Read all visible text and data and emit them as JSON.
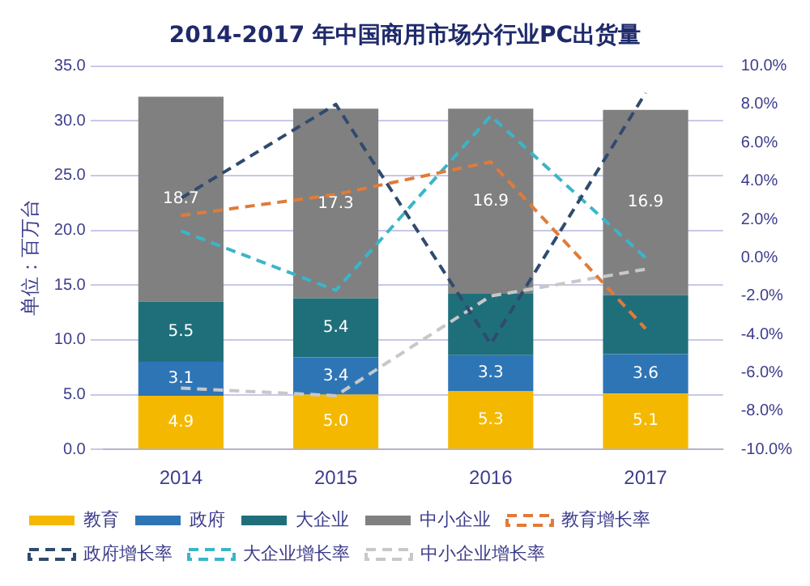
{
  "chart_data": {
    "type": "bar",
    "title": "2014-2017 年中国商用市场分行业PC出货量",
    "ylabel": "单位：百万台",
    "categories": [
      "2014",
      "2015",
      "2016",
      "2017"
    ],
    "stacked": true,
    "grid": "y",
    "legend": "bottom",
    "ylim": [
      0,
      35
    ],
    "yticks": [
      {
        "value": 0,
        "label": "0.0"
      },
      {
        "value": 5,
        "label": "5.0"
      },
      {
        "value": 10,
        "label": "10.0"
      },
      {
        "value": 15,
        "label": "15.0"
      },
      {
        "value": 20,
        "label": "20.0"
      },
      {
        "value": 25,
        "label": "25.0"
      },
      {
        "value": 30,
        "label": "30.0"
      },
      {
        "value": 35,
        "label": "35.0"
      }
    ],
    "y2lim": [
      -10,
      10
    ],
    "y2ticks": [
      {
        "value": -10,
        "label": "-10.0%"
      },
      {
        "value": -8,
        "label": "-8.0%"
      },
      {
        "value": -6,
        "label": "-6.0%"
      },
      {
        "value": -4,
        "label": "-4.0%"
      },
      {
        "value": -2,
        "label": "-2.0%"
      },
      {
        "value": 0,
        "label": "0.0%"
      },
      {
        "value": 2,
        "label": "2.0%"
      },
      {
        "value": 4,
        "label": "4.0%"
      },
      {
        "value": 6,
        "label": "6.0%"
      },
      {
        "value": 8,
        "label": "8.0%"
      },
      {
        "value": 10,
        "label": "10.0%"
      }
    ],
    "series": [
      {
        "name": "教育",
        "color": "#f5b800",
        "values": [
          4.9,
          5.0,
          5.3,
          5.1
        ],
        "value_labels": [
          "4.9",
          "5.0",
          "5.3",
          "5.1"
        ]
      },
      {
        "name": "政府",
        "color": "#2e75b6",
        "values": [
          3.1,
          3.4,
          3.3,
          3.6
        ],
        "value_labels": [
          "3.1",
          "3.4",
          "3.3",
          "3.6"
        ]
      },
      {
        "name": "大企业",
        "color": "#1f6f7a",
        "values": [
          5.5,
          5.4,
          5.6,
          5.4
        ],
        "value_labels": [
          "5.5",
          "5.4",
          null,
          null
        ]
      },
      {
        "name": "中小企业",
        "color": "#808080",
        "values": [
          18.7,
          17.3,
          16.9,
          16.9
        ],
        "value_labels": [
          "18.7",
          "17.3",
          "16.9",
          "16.9"
        ]
      },
      {
        "name": "教育增长率",
        "type": "line",
        "axis": "y2",
        "line_style": "dashed",
        "marker": "none",
        "color": "#e07b39",
        "values": [
          2.2,
          3.3,
          5.0,
          -3.7
        ]
      },
      {
        "name": "政府增长率",
        "type": "line",
        "axis": "y2",
        "line_style": "dashed",
        "marker": "none",
        "color": "#2f4b6e",
        "values": [
          3.1,
          8.0,
          -4.5,
          8.6
        ]
      },
      {
        "name": "大企业增长率",
        "type": "line",
        "axis": "y2",
        "line_style": "dashed",
        "marker": "none",
        "color": "#3ab5c9",
        "values": [
          1.4,
          -1.7,
          7.4,
          0.0
        ]
      },
      {
        "name": "中小企业增长率",
        "type": "line",
        "axis": "y2",
        "line_style": "dashed",
        "marker": "none",
        "color": "#c8c8c8",
        "values": [
          -6.8,
          -7.2,
          -2.0,
          -0.6
        ]
      }
    ]
  }
}
